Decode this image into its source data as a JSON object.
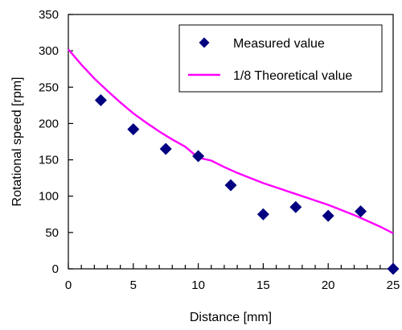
{
  "chart_data": {
    "type": "scatter",
    "xlabel": "Distance [mm]",
    "ylabel": "Rotational speed [rpm]",
    "xlim": [
      0,
      25
    ],
    "ylim": [
      0,
      350
    ],
    "x_ticks": [
      0,
      5,
      10,
      15,
      20,
      25
    ],
    "y_ticks": [
      0,
      50,
      100,
      150,
      200,
      250,
      300,
      350
    ],
    "x_tick_labels": [
      "0",
      "5",
      "10",
      "15",
      "20",
      "25"
    ],
    "y_tick_labels": [
      "0",
      "50",
      "100",
      "150",
      "200",
      "250",
      "300",
      "350"
    ],
    "grid": false,
    "legend_position": "top-right",
    "series": [
      {
        "name": "Measured value",
        "type": "scatter",
        "marker": "diamond",
        "color": "#000080",
        "x": [
          2.5,
          5,
          7.5,
          10,
          12.5,
          15,
          17.5,
          20,
          22.5,
          25
        ],
        "y": [
          232,
          192,
          165,
          155,
          115,
          75,
          85,
          73,
          79,
          0
        ]
      },
      {
        "name": "1/8 Theoretical value",
        "type": "line",
        "color": "#ff00ff",
        "x": [
          0,
          1,
          2,
          3,
          4,
          5,
          6,
          7,
          8,
          9,
          10,
          11,
          12,
          13,
          14,
          15,
          16,
          17,
          18,
          19,
          20,
          21,
          22,
          23,
          24,
          25
        ],
        "y": [
          302,
          281,
          262,
          245,
          229,
          214,
          201,
          189,
          178,
          168,
          153,
          149,
          140,
          132,
          125,
          118,
          112,
          106,
          100,
          94,
          88,
          81,
          74,
          66,
          58,
          49
        ]
      }
    ]
  }
}
